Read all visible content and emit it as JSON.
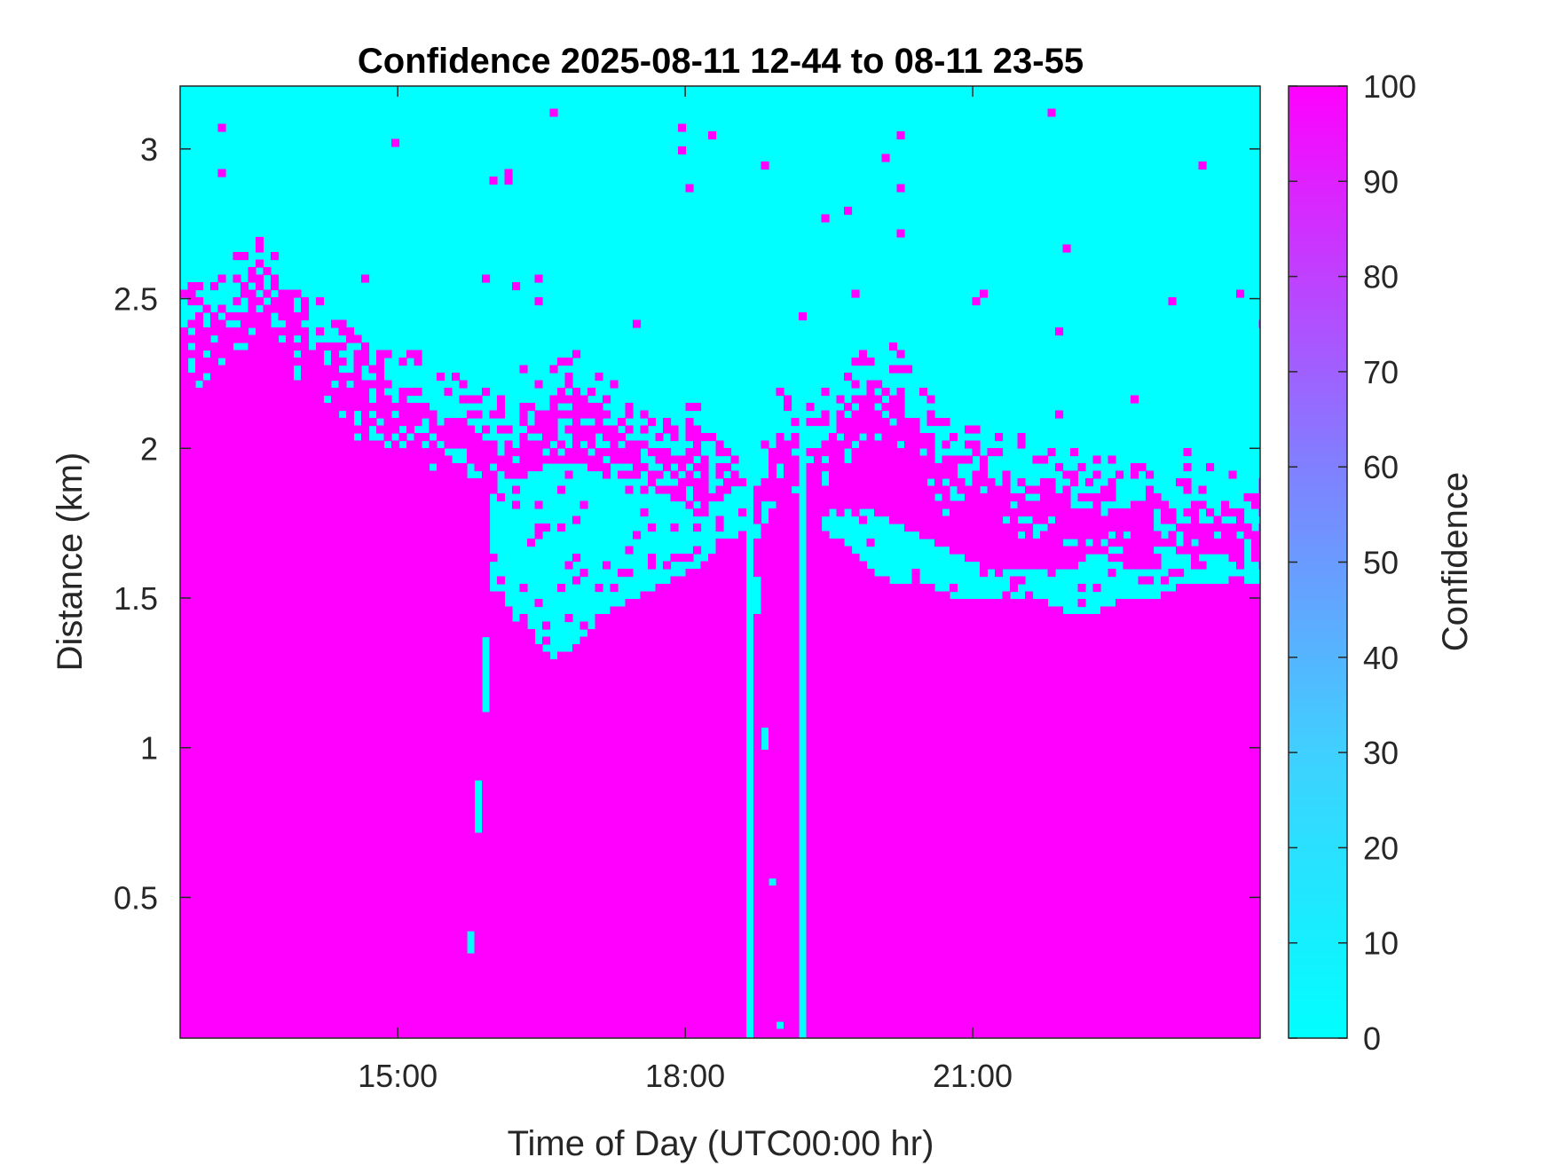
{
  "chart_data": {
    "type": "heatmap",
    "title": "Confidence 2025-08-11 12-44 to 08-11 23-55",
    "xlabel": "Time of Day (UTC00:00 hr)",
    "ylabel": "Distance (km)",
    "colorbar_label": "Confidence",
    "x_range_hours": [
      12.73,
      24.0
    ],
    "y_range_km": [
      0.03,
      3.21
    ],
    "x_ticks": [
      {
        "value": 15,
        "label": "15:00"
      },
      {
        "value": 18,
        "label": "18:00"
      },
      {
        "value": 21,
        "label": "21:00"
      }
    ],
    "y_ticks": [
      {
        "value": 0.5,
        "label": "0.5"
      },
      {
        "value": 1,
        "label": "1"
      },
      {
        "value": 1.5,
        "label": "1.5"
      },
      {
        "value": 2,
        "label": "2"
      },
      {
        "value": 2.5,
        "label": "2.5"
      },
      {
        "value": 3,
        "label": "3"
      }
    ],
    "colorbar_range": [
      0,
      100
    ],
    "colorbar_ticks": [
      0,
      10,
      20,
      30,
      40,
      50,
      60,
      70,
      80,
      90,
      100
    ],
    "colormap": {
      "low": "#00ffff",
      "high": "#ff00ff"
    },
    "grid": false,
    "cloud_top_km": {
      "hours": [
        12.73,
        13.0,
        13.3,
        13.6,
        13.9,
        14.2,
        14.5,
        14.8,
        15.1,
        15.4,
        15.7,
        16.0,
        16.3,
        16.6,
        16.9,
        17.2,
        17.5,
        17.8,
        18.1,
        18.4,
        18.7,
        19.0,
        19.3,
        19.6,
        19.9,
        20.2,
        20.5,
        20.8,
        21.1,
        21.4,
        21.7,
        22.0,
        22.3,
        22.6,
        22.9,
        23.2,
        23.5,
        23.8,
        24.0
      ],
      "top_km": [
        2.45,
        2.4,
        2.5,
        2.6,
        2.45,
        2.35,
        2.25,
        2.2,
        2.2,
        2.12,
        2.1,
        2.05,
        2.0,
        2.15,
        2.2,
        2.1,
        2.0,
        1.95,
        2.0,
        1.9,
        1.85,
        2.05,
        2.0,
        2.1,
        2.2,
        2.2,
        2.05,
        1.95,
        1.95,
        1.9,
        1.9,
        1.88,
        1.85,
        1.8,
        1.8,
        1.8,
        1.8,
        1.75,
        1.75
      ]
    },
    "clear_gap_km": {
      "hours": [
        12.73,
        15.7,
        16.0,
        16.3,
        16.6,
        16.9,
        17.2,
        17.5,
        17.8,
        18.1,
        18.4,
        18.7,
        19.0,
        19.3,
        19.6,
        19.9,
        20.2,
        20.5,
        20.8,
        21.1,
        21.4,
        21.7,
        22.0,
        22.3,
        22.6,
        22.9,
        23.2,
        23.5,
        23.8,
        24.0
      ],
      "gap_top_km": [
        0,
        0,
        1.9,
        1.9,
        1.95,
        1.95,
        1.9,
        1.9,
        1.85,
        1.8,
        1.85,
        1.9,
        0,
        1.75,
        1.8,
        1.8,
        1.75,
        1.7,
        1.65,
        1.6,
        1.6,
        1.6,
        1.6,
        1.65,
        1.6,
        1.6,
        1.65,
        1.65,
        1.6,
        1.6
      ],
      "gap_bottom_km": [
        0,
        0,
        1.55,
        1.4,
        1.3,
        1.35,
        1.45,
        1.5,
        1.55,
        1.6,
        1.7,
        1.75,
        0,
        1.75,
        1.7,
        1.6,
        1.55,
        1.55,
        1.5,
        1.5,
        1.5,
        1.5,
        1.45,
        1.45,
        1.5,
        1.5,
        1.55,
        1.55,
        1.55,
        1.55
      ]
    },
    "clear_columns_hours": [
      18.7,
      19.2
    ]
  }
}
